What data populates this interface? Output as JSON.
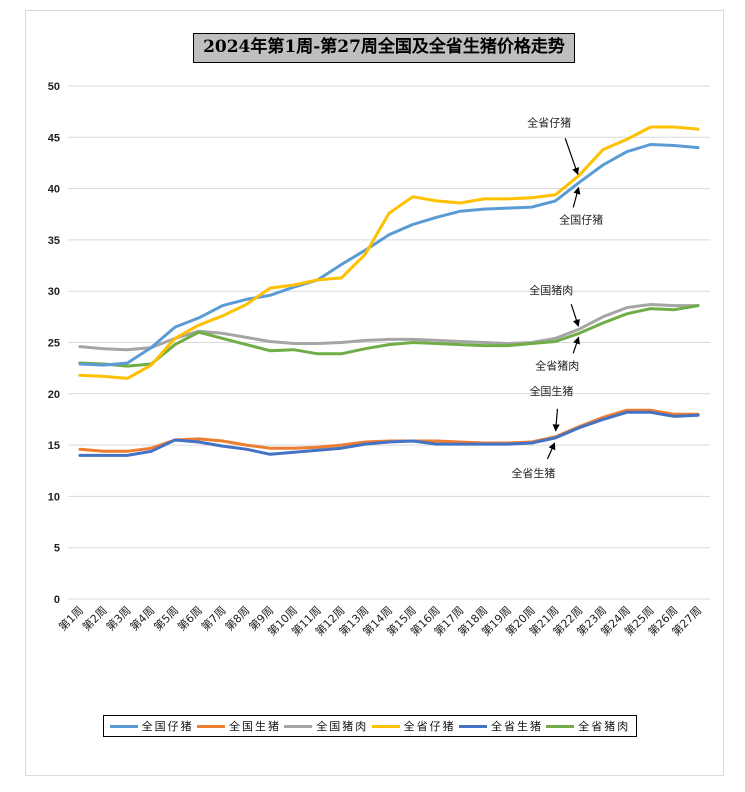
{
  "chart_data": {
    "type": "line",
    "title": "2024年第1周-第27周全国及全省生猪价格走势",
    "xlabel": "",
    "ylabel": "",
    "ylim": [
      0,
      50
    ],
    "yticks": [
      0,
      5,
      10,
      15,
      20,
      25,
      30,
      35,
      40,
      45,
      50
    ],
    "grid": true,
    "legend_position": "bottom",
    "categories": [
      "第1周",
      "第2周",
      "第3周",
      "第4周",
      "第5周",
      "第6周",
      "第7周",
      "第8周",
      "第9周",
      "第10周",
      "第11周",
      "第12周",
      "第13周",
      "第14周",
      "第15周",
      "第16周",
      "第17周",
      "第18周",
      "第19周",
      "第20周",
      "第21周",
      "第22周",
      "第23周",
      "第24周",
      "第25周",
      "第26周",
      "第27周"
    ],
    "series": [
      {
        "name": "全国仔猪",
        "color": "#5B9BD5",
        "values": [
          22.9,
          22.8,
          23.0,
          24.5,
          26.5,
          27.4,
          28.6,
          29.2,
          29.6,
          30.4,
          31.1,
          32.6,
          34.0,
          35.5,
          36.5,
          37.2,
          37.8,
          38.0,
          38.1,
          38.2,
          38.8,
          40.6,
          42.3,
          43.6,
          44.3,
          44.2,
          44.0
        ]
      },
      {
        "name": "全国生猪",
        "color": "#ED7D31",
        "values": [
          14.6,
          14.4,
          14.4,
          14.7,
          15.5,
          15.6,
          15.4,
          15.0,
          14.7,
          14.7,
          14.8,
          15.0,
          15.3,
          15.4,
          15.4,
          15.4,
          15.3,
          15.2,
          15.2,
          15.3,
          15.8,
          16.8,
          17.7,
          18.4,
          18.4,
          18.0,
          18.0
        ]
      },
      {
        "name": "全国猪肉",
        "color": "#A5A5A5",
        "values": [
          24.6,
          24.4,
          24.3,
          24.5,
          25.4,
          26.1,
          25.9,
          25.5,
          25.1,
          24.9,
          24.9,
          25.0,
          25.2,
          25.3,
          25.3,
          25.2,
          25.1,
          25.0,
          24.9,
          25.0,
          25.4,
          26.3,
          27.5,
          28.4,
          28.7,
          28.6,
          28.6
        ]
      },
      {
        "name": "全省仔猪",
        "color": "#FFC000",
        "values": [
          21.8,
          21.7,
          21.5,
          22.8,
          25.4,
          26.7,
          27.6,
          28.7,
          30.3,
          30.6,
          31.1,
          31.3,
          33.6,
          37.6,
          39.2,
          38.8,
          38.6,
          39.0,
          39.0,
          39.1,
          39.4,
          41.3,
          43.8,
          44.8,
          46.0,
          46.0,
          45.8
        ]
      },
      {
        "name": "全省生猪",
        "color": "#4472C4",
        "values": [
          14.0,
          14.0,
          14.0,
          14.4,
          15.5,
          15.3,
          14.9,
          14.6,
          14.1,
          14.3,
          14.5,
          14.7,
          15.1,
          15.3,
          15.4,
          15.1,
          15.1,
          15.1,
          15.1,
          15.2,
          15.7,
          16.7,
          17.5,
          18.2,
          18.2,
          17.8,
          17.9
        ]
      },
      {
        "name": "全省猪肉",
        "color": "#70AD47",
        "values": [
          23.0,
          22.9,
          22.7,
          22.9,
          24.8,
          26.0,
          25.4,
          24.8,
          24.2,
          24.3,
          23.9,
          23.9,
          24.4,
          24.8,
          25.0,
          24.9,
          24.8,
          24.7,
          24.7,
          24.9,
          25.1,
          25.9,
          26.9,
          27.8,
          28.3,
          28.2,
          28.6
        ]
      }
    ],
    "annotations": [
      {
        "text": "全省仔猪",
        "series": "全省仔猪",
        "point": 21,
        "value": 41.0
      },
      {
        "text": "全国仔猪",
        "series": "全国仔猪",
        "point": 21,
        "value": 40.5
      },
      {
        "text": "全国猪肉",
        "series": "全国猪肉",
        "point": 21,
        "value": 26.2
      },
      {
        "text": "全省猪肉",
        "series": "全省猪肉",
        "point": 21,
        "value": 25.9
      },
      {
        "text": "全国生猪",
        "series": "全国生猪",
        "point": 20,
        "value": 16.0
      },
      {
        "text": "全省生猪",
        "series": "全省生猪",
        "point": 20,
        "value": 15.6
      }
    ]
  }
}
